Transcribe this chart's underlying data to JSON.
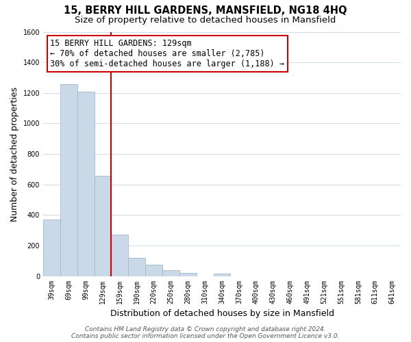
{
  "title": "15, BERRY HILL GARDENS, MANSFIELD, NG18 4HQ",
  "subtitle": "Size of property relative to detached houses in Mansfield",
  "xlabel": "Distribution of detached houses by size in Mansfield",
  "ylabel": "Number of detached properties",
  "bar_labels": [
    "39sqm",
    "69sqm",
    "99sqm",
    "129sqm",
    "159sqm",
    "190sqm",
    "220sqm",
    "250sqm",
    "280sqm",
    "310sqm",
    "340sqm",
    "370sqm",
    "400sqm",
    "430sqm",
    "460sqm",
    "491sqm",
    "521sqm",
    "551sqm",
    "581sqm",
    "611sqm",
    "641sqm"
  ],
  "bar_values": [
    370,
    1255,
    1210,
    655,
    270,
    120,
    75,
    40,
    20,
    0,
    15,
    0,
    0,
    0,
    0,
    0,
    0,
    0,
    0,
    0,
    0
  ],
  "bar_color": "#c9d9e8",
  "bar_edge_color": "#a0b8cc",
  "vline_color": "#cc0000",
  "vline_x": 3.5,
  "ylim": [
    0,
    1600
  ],
  "yticks": [
    0,
    200,
    400,
    600,
    800,
    1000,
    1200,
    1400,
    1600
  ],
  "annotation_title": "15 BERRY HILL GARDENS: 129sqm",
  "annotation_line1": "← 70% of detached houses are smaller (2,785)",
  "annotation_line2": "30% of semi-detached houses are larger (1,188) →",
  "annotation_box_color": "#ffffff",
  "annotation_box_edge": "#cc0000",
  "footer_line1": "Contains HM Land Registry data © Crown copyright and database right 2024.",
  "footer_line2": "Contains public sector information licensed under the Open Government Licence v3.0.",
  "background_color": "#ffffff",
  "grid_color": "#d0dde8",
  "title_fontsize": 10.5,
  "subtitle_fontsize": 9.5,
  "axis_label_fontsize": 9,
  "tick_fontsize": 7,
  "footer_fontsize": 6.5,
  "annotation_fontsize": 8.5
}
